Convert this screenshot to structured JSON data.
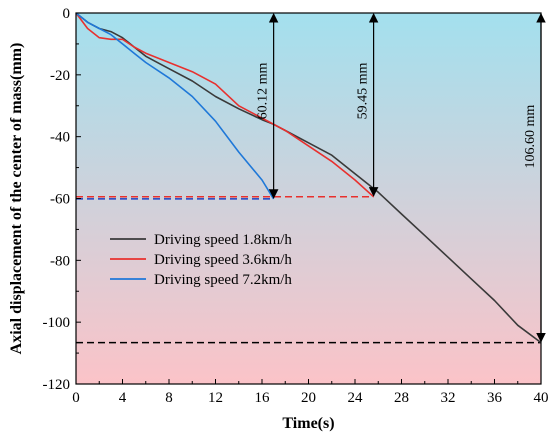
{
  "chart_data": {
    "type": "line",
    "xlabel": "Time(s)",
    "ylabel": "Axial displacement of the center of mass(mm)",
    "xlim": [
      0,
      40
    ],
    "ylim": [
      -120,
      0
    ],
    "xticks": [
      0,
      4,
      8,
      12,
      16,
      20,
      24,
      28,
      32,
      36,
      40
    ],
    "yticks": [
      0,
      -20,
      -40,
      -60,
      -80,
      -100,
      -120
    ],
    "background": {
      "top_color": "#a3e0ee",
      "bottom_color": "#fbc3c8"
    },
    "legend_position": "left",
    "series": [
      {
        "name": "Driving speed 1.8km/h",
        "color": "#3a3a3a",
        "x": [
          0,
          1,
          2,
          3,
          4,
          5,
          6,
          8,
          10,
          12,
          14,
          16,
          17,
          18,
          20,
          22,
          24,
          26,
          28,
          30,
          32,
          34,
          36,
          38,
          40
        ],
        "y": [
          0,
          -3,
          -5,
          -6,
          -8,
          -11,
          -14,
          -18,
          -22,
          -27,
          -31,
          -34.5,
          -36,
          -38,
          -42,
          -46,
          -52,
          -58,
          -65,
          -72,
          -79,
          -86,
          -93,
          -101,
          -106.6
        ]
      },
      {
        "name": "Driving speed 3.6km/h",
        "color": "#e8302e",
        "x": [
          0,
          1,
          2,
          3,
          4,
          5,
          6,
          8,
          10,
          12,
          14,
          16,
          18,
          20,
          22,
          24,
          25.6
        ],
        "y": [
          0,
          -5,
          -8,
          -8.5,
          -8.5,
          -11,
          -13,
          -16,
          -19,
          -23,
          -30,
          -34,
          -38,
          -43,
          -48,
          -54,
          -59.45
        ]
      },
      {
        "name": "Driving speed 7.2km/h",
        "color": "#1f78d8",
        "x": [
          0,
          1,
          2,
          3,
          4,
          5,
          6,
          8,
          10,
          12,
          14,
          16,
          17
        ],
        "y": [
          0,
          -3,
          -5,
          -7,
          -10,
          -13,
          -16,
          -21,
          -27,
          -35,
          -45,
          -54,
          -60.12
        ]
      }
    ],
    "reference_lines": [
      {
        "y": -60.12,
        "x_end": 17,
        "color": "#1f3fbf"
      },
      {
        "y": -59.45,
        "x_end": 25.6,
        "color": "#e8302e"
      },
      {
        "y": -106.6,
        "x_end": 40,
        "color": "#000000"
      }
    ],
    "annotations": [
      {
        "text": "60.12 mm",
        "x": 17,
        "y_top": 0,
        "y_bottom": -60.12
      },
      {
        "text": "59.45 mm",
        "x": 25.6,
        "y_top": 0,
        "y_bottom": -59.45
      },
      {
        "text": "106.60 mm",
        "x": 40,
        "y_top": 0,
        "y_bottom": -106.6
      }
    ]
  }
}
